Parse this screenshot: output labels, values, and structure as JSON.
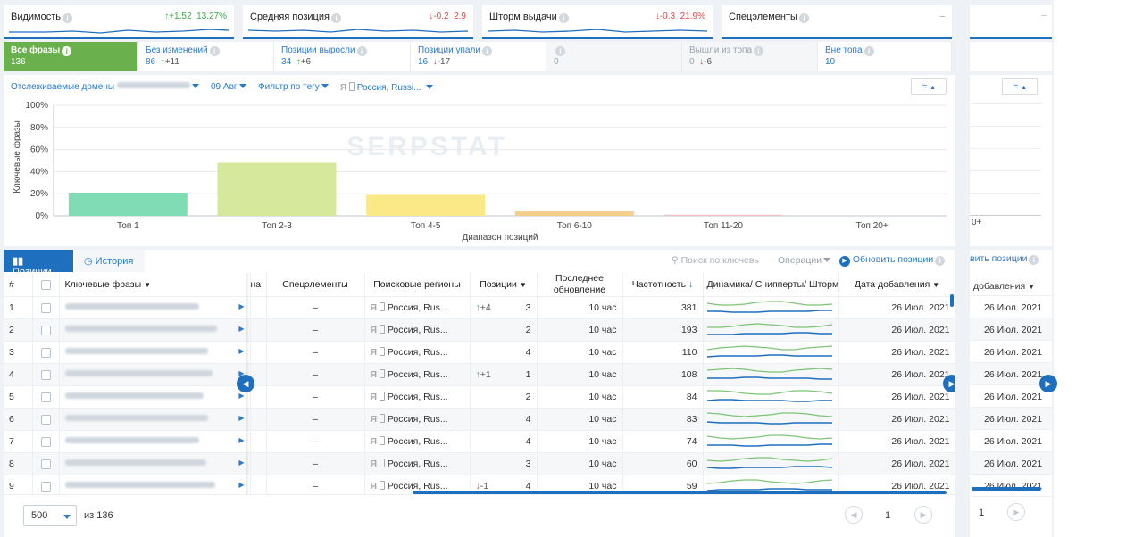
{
  "metrics": [
    {
      "label": "Видимость",
      "change": "+1.52",
      "dir": "up",
      "value": "13.27%"
    },
    {
      "label": "Средняя позиция",
      "change": "-0.2",
      "dir": "down",
      "value": "2.9"
    },
    {
      "label": "Шторм выдачи",
      "change": "-0.3",
      "dir": "down",
      "value": "21.9%"
    },
    {
      "label": "Спецэлементы",
      "change": "",
      "dir": "",
      "value": "–"
    }
  ],
  "filters": [
    {
      "label": "Все фразы",
      "count": "136",
      "delta": "",
      "dir": "",
      "active": true
    },
    {
      "label": "Без изменений",
      "count": "86",
      "delta": "+11",
      "dir": "up"
    },
    {
      "label": "Позиции выросли",
      "count": "34",
      "delta": "+6",
      "dir": "up"
    },
    {
      "label": "Позиции упали",
      "count": "16",
      "delta": "-17",
      "dir": "down"
    },
    {
      "label": "",
      "count": "0",
      "delta": "",
      "dir": "",
      "dim": true
    },
    {
      "label": "Вышли из топа",
      "count": "0",
      "delta": "-6",
      "dir": "down",
      "dim": true
    },
    {
      "label": "Вне топа",
      "count": "10",
      "delta": "",
      "dir": ""
    }
  ],
  "toolbar": {
    "domains_label": "Отслеживаемые домены",
    "date": "09 Авг",
    "tag_filter": "Фильтр по тегу",
    "region": "Россия, Russi..."
  },
  "chart_data": {
    "type": "bar",
    "watermark": "SERPSTAT",
    "ylabel": "Ключевые фразы",
    "xlabel": "Диапазон позиций",
    "ylim": [
      0,
      100
    ],
    "yticks": [
      "100%",
      "80%",
      "60%",
      "40%",
      "20%",
      "0%"
    ],
    "categories": [
      "Топ 1",
      "Топ 2-3",
      "Топ 4-5",
      "Топ 6-10",
      "Топ 11-20",
      "Топ 20+"
    ],
    "values": [
      21,
      48,
      19,
      4,
      1,
      0
    ],
    "colors": [
      "#7fdcb4",
      "#d6e89c",
      "#fbe886",
      "#f5cf8a",
      "#f4c0c4",
      "#cccccc"
    ]
  },
  "tabs": {
    "positions": "Позиции",
    "history": "История"
  },
  "table_tools": {
    "search_placeholder": "Поиск по ключевь",
    "operations": "Операции",
    "refresh": "Обновить позиции"
  },
  "columns": {
    "num": "#",
    "keywords": "Ключевые фразы",
    "hidden": "на",
    "special": "Спецэлементы",
    "regions": "Поисковые регионы",
    "positions": "Позиции",
    "updated_1": "Последнее",
    "updated_2": "обновление",
    "frequency": "Частотность",
    "dynamics": "Динамика/ Снипперты/ Шторм",
    "date_added": "Дата добавления"
  },
  "rows": [
    {
      "n": "1",
      "special": "–",
      "region": "Россия, Rus...",
      "change": "+4",
      "dir": "up",
      "pos": "3",
      "updated": "10 час",
      "freq": "381",
      "date": "26 Июл. 2021"
    },
    {
      "n": "2",
      "special": "–",
      "region": "Россия, Rus...",
      "change": "",
      "dir": "",
      "pos": "2",
      "updated": "10 час",
      "freq": "193",
      "date": "26 Июл. 2021"
    },
    {
      "n": "3",
      "special": "–",
      "region": "Россия, Rus...",
      "change": "",
      "dir": "",
      "pos": "4",
      "updated": "10 час",
      "freq": "110",
      "date": "26 Июл. 2021"
    },
    {
      "n": "4",
      "special": "–",
      "region": "Россия, Rus...",
      "change": "+1",
      "dir": "up",
      "pos": "1",
      "updated": "10 час",
      "freq": "108",
      "date": "26 Июл. 2021"
    },
    {
      "n": "5",
      "special": "–",
      "region": "Россия, Rus...",
      "change": "",
      "dir": "",
      "pos": "2",
      "updated": "10 час",
      "freq": "84",
      "date": "26 Июл. 2021"
    },
    {
      "n": "6",
      "special": "–",
      "region": "Россия, Rus...",
      "change": "",
      "dir": "",
      "pos": "4",
      "updated": "10 час",
      "freq": "83",
      "date": "26 Июл. 2021"
    },
    {
      "n": "7",
      "special": "–",
      "region": "Россия, Rus...",
      "change": "",
      "dir": "",
      "pos": "4",
      "updated": "10 час",
      "freq": "74",
      "date": "26 Июл. 2021"
    },
    {
      "n": "8",
      "special": "–",
      "region": "Россия, Rus...",
      "change": "",
      "dir": "",
      "pos": "3",
      "updated": "10 час",
      "freq": "60",
      "date": "26 Июл. 2021"
    },
    {
      "n": "9",
      "special": "–",
      "region": "Россия, Rus...",
      "change": "-1",
      "dir": "down",
      "pos": "4",
      "updated": "10 час",
      "freq": "59",
      "date": "26 Июл. 2021"
    }
  ],
  "pagination": {
    "per_page": "500",
    "total_label": "из 136",
    "page": "1"
  },
  "ghost": {
    "refresh": "вить позиции",
    "date_header": "добавления",
    "dates": [
      "26 Июл. 2021",
      "26 Июл. 2021",
      "26 Июл. 2021",
      "26 Июл. 2021",
      "26 Июл. 2021",
      "26 Июл. 2021",
      "26 Июл. 2021",
      "26 Июл. 2021",
      "26 Июл. 2021"
    ],
    "tick": "0+",
    "page": "1"
  }
}
